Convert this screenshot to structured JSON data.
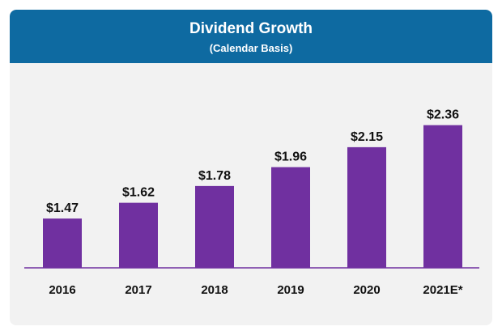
{
  "header": {
    "title": "Dividend Growth",
    "subtitle": "(Calendar Basis)"
  },
  "colors": {
    "header_bg": "#0e6aa1",
    "bar": "#7030a0",
    "axis": "#7030a0",
    "card_bg": "#f2f2f2"
  },
  "chart_data": {
    "type": "bar",
    "title": "Dividend Growth",
    "subtitle": "(Calendar Basis)",
    "categories": [
      "2016",
      "2017",
      "2018",
      "2019",
      "2020",
      "2021E*"
    ],
    "values": [
      1.47,
      1.62,
      1.78,
      1.96,
      2.15,
      2.36
    ],
    "value_labels": [
      "$1.47",
      "$1.62",
      "$1.78",
      "$1.96",
      "$2.15",
      "$2.36"
    ],
    "xlabel": "",
    "ylabel": "",
    "ylim": [
      1.0,
      2.45
    ],
    "grid": false,
    "legend": "none"
  }
}
